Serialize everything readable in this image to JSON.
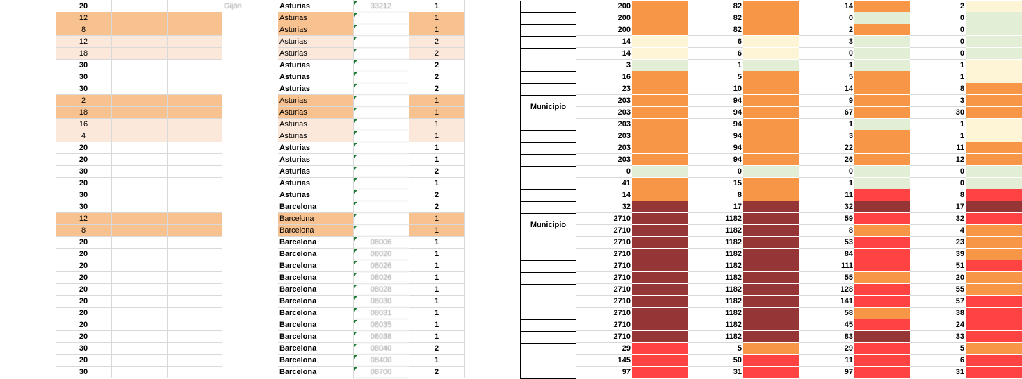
{
  "colors": {
    "peach": "#f8c190",
    "light_peach": "#fce8da",
    "orange": "#f79646",
    "light_yellow": "#fef5d6",
    "light_green": "#e3eed6",
    "red": "#ff4343",
    "dark_red": "#963535",
    "grid": "#d9d9d9"
  },
  "left_sheet": {
    "rows": [
      {
        "num": "20",
        "city": "Gijón",
        "province": "Asturias",
        "code": "33212",
        "val": "1",
        "fill": "none"
      },
      {
        "num": "12",
        "city": "",
        "province": "Asturias",
        "code": "",
        "val": "1",
        "fill": "peach"
      },
      {
        "num": "8",
        "city": "",
        "province": "Asturias",
        "code": "",
        "val": "1",
        "fill": "peach"
      },
      {
        "num": "12",
        "city": "",
        "province": "Asturias",
        "code": "",
        "val": "2",
        "fill": "light_peach"
      },
      {
        "num": "18",
        "city": "",
        "province": "Asturias",
        "code": "",
        "val": "2",
        "fill": "light_peach"
      },
      {
        "num": "30",
        "city": "",
        "province": "Asturias",
        "code": "",
        "val": "2",
        "fill": "none"
      },
      {
        "num": "30",
        "city": "",
        "province": "Asturias",
        "code": "",
        "val": "2",
        "fill": "none"
      },
      {
        "num": "30",
        "city": "",
        "province": "Asturias",
        "code": "",
        "val": "2",
        "fill": "none"
      },
      {
        "num": "2",
        "city": "",
        "province": "Asturias",
        "code": "",
        "val": "1",
        "fill": "peach"
      },
      {
        "num": "18",
        "city": "",
        "province": "Asturias",
        "code": "",
        "val": "1",
        "fill": "peach"
      },
      {
        "num": "16",
        "city": "",
        "province": "Asturias",
        "code": "",
        "val": "1",
        "fill": "light_peach"
      },
      {
        "num": "4",
        "city": "",
        "province": "Asturias",
        "code": "",
        "val": "1",
        "fill": "light_peach"
      },
      {
        "num": "20",
        "city": "",
        "province": "Asturias",
        "code": "",
        "val": "1",
        "fill": "none"
      },
      {
        "num": "20",
        "city": "",
        "province": "Asturias",
        "code": "",
        "val": "1",
        "fill": "none"
      },
      {
        "num": "30",
        "city": "",
        "province": "Asturias",
        "code": "",
        "val": "2",
        "fill": "none"
      },
      {
        "num": "20",
        "city": "",
        "province": "Asturias",
        "code": "",
        "val": "1",
        "fill": "none"
      },
      {
        "num": "30",
        "city": "",
        "province": "Asturias",
        "code": "",
        "val": "2",
        "fill": "none"
      },
      {
        "num": "30",
        "city": "",
        "province": "Barcelona",
        "code": "",
        "val": "2",
        "fill": "none"
      },
      {
        "num": "12",
        "city": "",
        "province": "Barcelona",
        "code": "",
        "val": "1",
        "fill": "peach"
      },
      {
        "num": "8",
        "city": "",
        "province": "Barcelona",
        "code": "",
        "val": "1",
        "fill": "peach"
      },
      {
        "num": "20",
        "city": "",
        "province": "Barcelona",
        "code": "08006",
        "val": "1",
        "fill": "none"
      },
      {
        "num": "20",
        "city": "",
        "province": "Barcelona",
        "code": "08020",
        "val": "1",
        "fill": "none"
      },
      {
        "num": "20",
        "city": "",
        "province": "Barcelona",
        "code": "08026",
        "val": "1",
        "fill": "none"
      },
      {
        "num": "20",
        "city": "",
        "province": "Barcelona",
        "code": "08026",
        "val": "1",
        "fill": "none"
      },
      {
        "num": "20",
        "city": "",
        "province": "Barcelona",
        "code": "08028",
        "val": "1",
        "fill": "none"
      },
      {
        "num": "20",
        "city": "",
        "province": "Barcelona",
        "code": "08030",
        "val": "1",
        "fill": "none"
      },
      {
        "num": "20",
        "city": "",
        "province": "Barcelona",
        "code": "08031",
        "val": "1",
        "fill": "none"
      },
      {
        "num": "20",
        "city": "",
        "province": "Barcelona",
        "code": "08035",
        "val": "1",
        "fill": "none"
      },
      {
        "num": "20",
        "city": "",
        "province": "Barcelona",
        "code": "08038",
        "val": "1",
        "fill": "none"
      },
      {
        "num": "30",
        "city": "",
        "province": "Barcelona",
        "code": "08040",
        "val": "2",
        "fill": "none"
      },
      {
        "num": "20",
        "city": "",
        "province": "Barcelona",
        "code": "08400",
        "val": "1",
        "fill": "none"
      },
      {
        "num": "30",
        "city": "",
        "province": "Barcelona",
        "code": "08700",
        "val": "2",
        "fill": "none"
      }
    ]
  },
  "right_sheet": {
    "municipio_label": "Municipio",
    "municipio_groups": [
      {
        "label": "Municipio",
        "start_row": 8,
        "end_row": 9
      },
      {
        "label": "Municipio",
        "start_row": 18,
        "end_row": 19
      }
    ],
    "rows": [
      {
        "a": "200",
        "fa": "orange",
        "b": "82",
        "fb": "orange",
        "c": "14",
        "fc": "orange",
        "d": "2",
        "fd": "light_yellow"
      },
      {
        "a": "200",
        "fa": "orange",
        "b": "82",
        "fb": "orange",
        "c": "0",
        "fc": "light_green",
        "d": "0",
        "fd": "light_green"
      },
      {
        "a": "200",
        "fa": "orange",
        "b": "82",
        "fb": "orange",
        "c": "2",
        "fc": "orange",
        "d": "0",
        "fd": "light_green"
      },
      {
        "a": "14",
        "fa": "light_yellow",
        "b": "6",
        "fb": "light_yellow",
        "c": "3",
        "fc": "light_green",
        "d": "0",
        "fd": "light_green"
      },
      {
        "a": "14",
        "fa": "light_yellow",
        "b": "6",
        "fb": "light_yellow",
        "c": "0",
        "fc": "light_green",
        "d": "0",
        "fd": "light_green"
      },
      {
        "a": "3",
        "fa": "light_green",
        "b": "1",
        "fb": "light_green",
        "c": "1",
        "fc": "light_green",
        "d": "1",
        "fd": "light_yellow"
      },
      {
        "a": "16",
        "fa": "orange",
        "b": "5",
        "fb": "orange",
        "c": "5",
        "fc": "orange",
        "d": "1",
        "fd": "light_yellow"
      },
      {
        "a": "23",
        "fa": "orange",
        "b": "10",
        "fb": "orange",
        "c": "14",
        "fc": "orange",
        "d": "8",
        "fd": "orange"
      },
      {
        "a": "203",
        "fa": "orange",
        "b": "94",
        "fb": "orange",
        "c": "9",
        "fc": "orange",
        "d": "3",
        "fd": "orange"
      },
      {
        "a": "203",
        "fa": "orange",
        "b": "94",
        "fb": "orange",
        "c": "67",
        "fc": "orange",
        "d": "30",
        "fd": "orange"
      },
      {
        "a": "203",
        "fa": "orange",
        "b": "94",
        "fb": "orange",
        "c": "1",
        "fc": "light_green",
        "d": "1",
        "fd": "light_yellow"
      },
      {
        "a": "203",
        "fa": "orange",
        "b": "94",
        "fb": "orange",
        "c": "3",
        "fc": "orange",
        "d": "1",
        "fd": "light_yellow"
      },
      {
        "a": "203",
        "fa": "orange",
        "b": "94",
        "fb": "orange",
        "c": "22",
        "fc": "orange",
        "d": "11",
        "fd": "orange"
      },
      {
        "a": "203",
        "fa": "orange",
        "b": "94",
        "fb": "orange",
        "c": "26",
        "fc": "orange",
        "d": "12",
        "fd": "orange"
      },
      {
        "a": "0",
        "fa": "light_green",
        "b": "0",
        "fb": "light_green",
        "c": "0",
        "fc": "light_green",
        "d": "0",
        "fd": "light_green"
      },
      {
        "a": "41",
        "fa": "orange",
        "b": "15",
        "fb": "orange",
        "c": "1",
        "fc": "light_green",
        "d": "0",
        "fd": "light_green"
      },
      {
        "a": "14",
        "fa": "orange",
        "b": "8",
        "fb": "orange",
        "c": "11",
        "fc": "red",
        "d": "8",
        "fd": "red"
      },
      {
        "a": "32",
        "fa": "dark_red",
        "b": "17",
        "fb": "dark_red",
        "c": "32",
        "fc": "dark_red",
        "d": "17",
        "fd": "dark_red"
      },
      {
        "a": "2710",
        "fa": "dark_red",
        "b": "1182",
        "fb": "dark_red",
        "c": "59",
        "fc": "red",
        "d": "32",
        "fd": "red"
      },
      {
        "a": "2710",
        "fa": "dark_red",
        "b": "1182",
        "fb": "dark_red",
        "c": "8",
        "fc": "orange",
        "d": "4",
        "fd": "orange"
      },
      {
        "a": "2710",
        "fa": "dark_red",
        "b": "1182",
        "fb": "dark_red",
        "c": "53",
        "fc": "red",
        "d": "23",
        "fd": "orange"
      },
      {
        "a": "2710",
        "fa": "dark_red",
        "b": "1182",
        "fb": "dark_red",
        "c": "84",
        "fc": "red",
        "d": "39",
        "fd": "orange"
      },
      {
        "a": "2710",
        "fa": "dark_red",
        "b": "1182",
        "fb": "dark_red",
        "c": "111",
        "fc": "red",
        "d": "51",
        "fd": "red"
      },
      {
        "a": "2710",
        "fa": "dark_red",
        "b": "1182",
        "fb": "dark_red",
        "c": "55",
        "fc": "orange",
        "d": "20",
        "fd": "orange"
      },
      {
        "a": "2710",
        "fa": "dark_red",
        "b": "1182",
        "fb": "dark_red",
        "c": "128",
        "fc": "red",
        "d": "55",
        "fd": "orange"
      },
      {
        "a": "2710",
        "fa": "dark_red",
        "b": "1182",
        "fb": "dark_red",
        "c": "141",
        "fc": "red",
        "d": "57",
        "fd": "red"
      },
      {
        "a": "2710",
        "fa": "dark_red",
        "b": "1182",
        "fb": "dark_red",
        "c": "58",
        "fc": "orange",
        "d": "38",
        "fd": "red"
      },
      {
        "a": "2710",
        "fa": "dark_red",
        "b": "1182",
        "fb": "dark_red",
        "c": "45",
        "fc": "red",
        "d": "24",
        "fd": "red"
      },
      {
        "a": "2710",
        "fa": "dark_red",
        "b": "1182",
        "fb": "dark_red",
        "c": "83",
        "fc": "dark_red",
        "d": "33",
        "fd": "red"
      },
      {
        "a": "29",
        "fa": "red",
        "b": "5",
        "fb": "orange",
        "c": "29",
        "fc": "red",
        "d": "5",
        "fd": "orange"
      },
      {
        "a": "145",
        "fa": "red",
        "b": "50",
        "fb": "red",
        "c": "11",
        "fc": "red",
        "d": "6",
        "fd": "red"
      },
      {
        "a": "97",
        "fa": "red",
        "b": "31",
        "fb": "red",
        "c": "97",
        "fc": "red",
        "d": "31",
        "fd": "red"
      }
    ]
  }
}
